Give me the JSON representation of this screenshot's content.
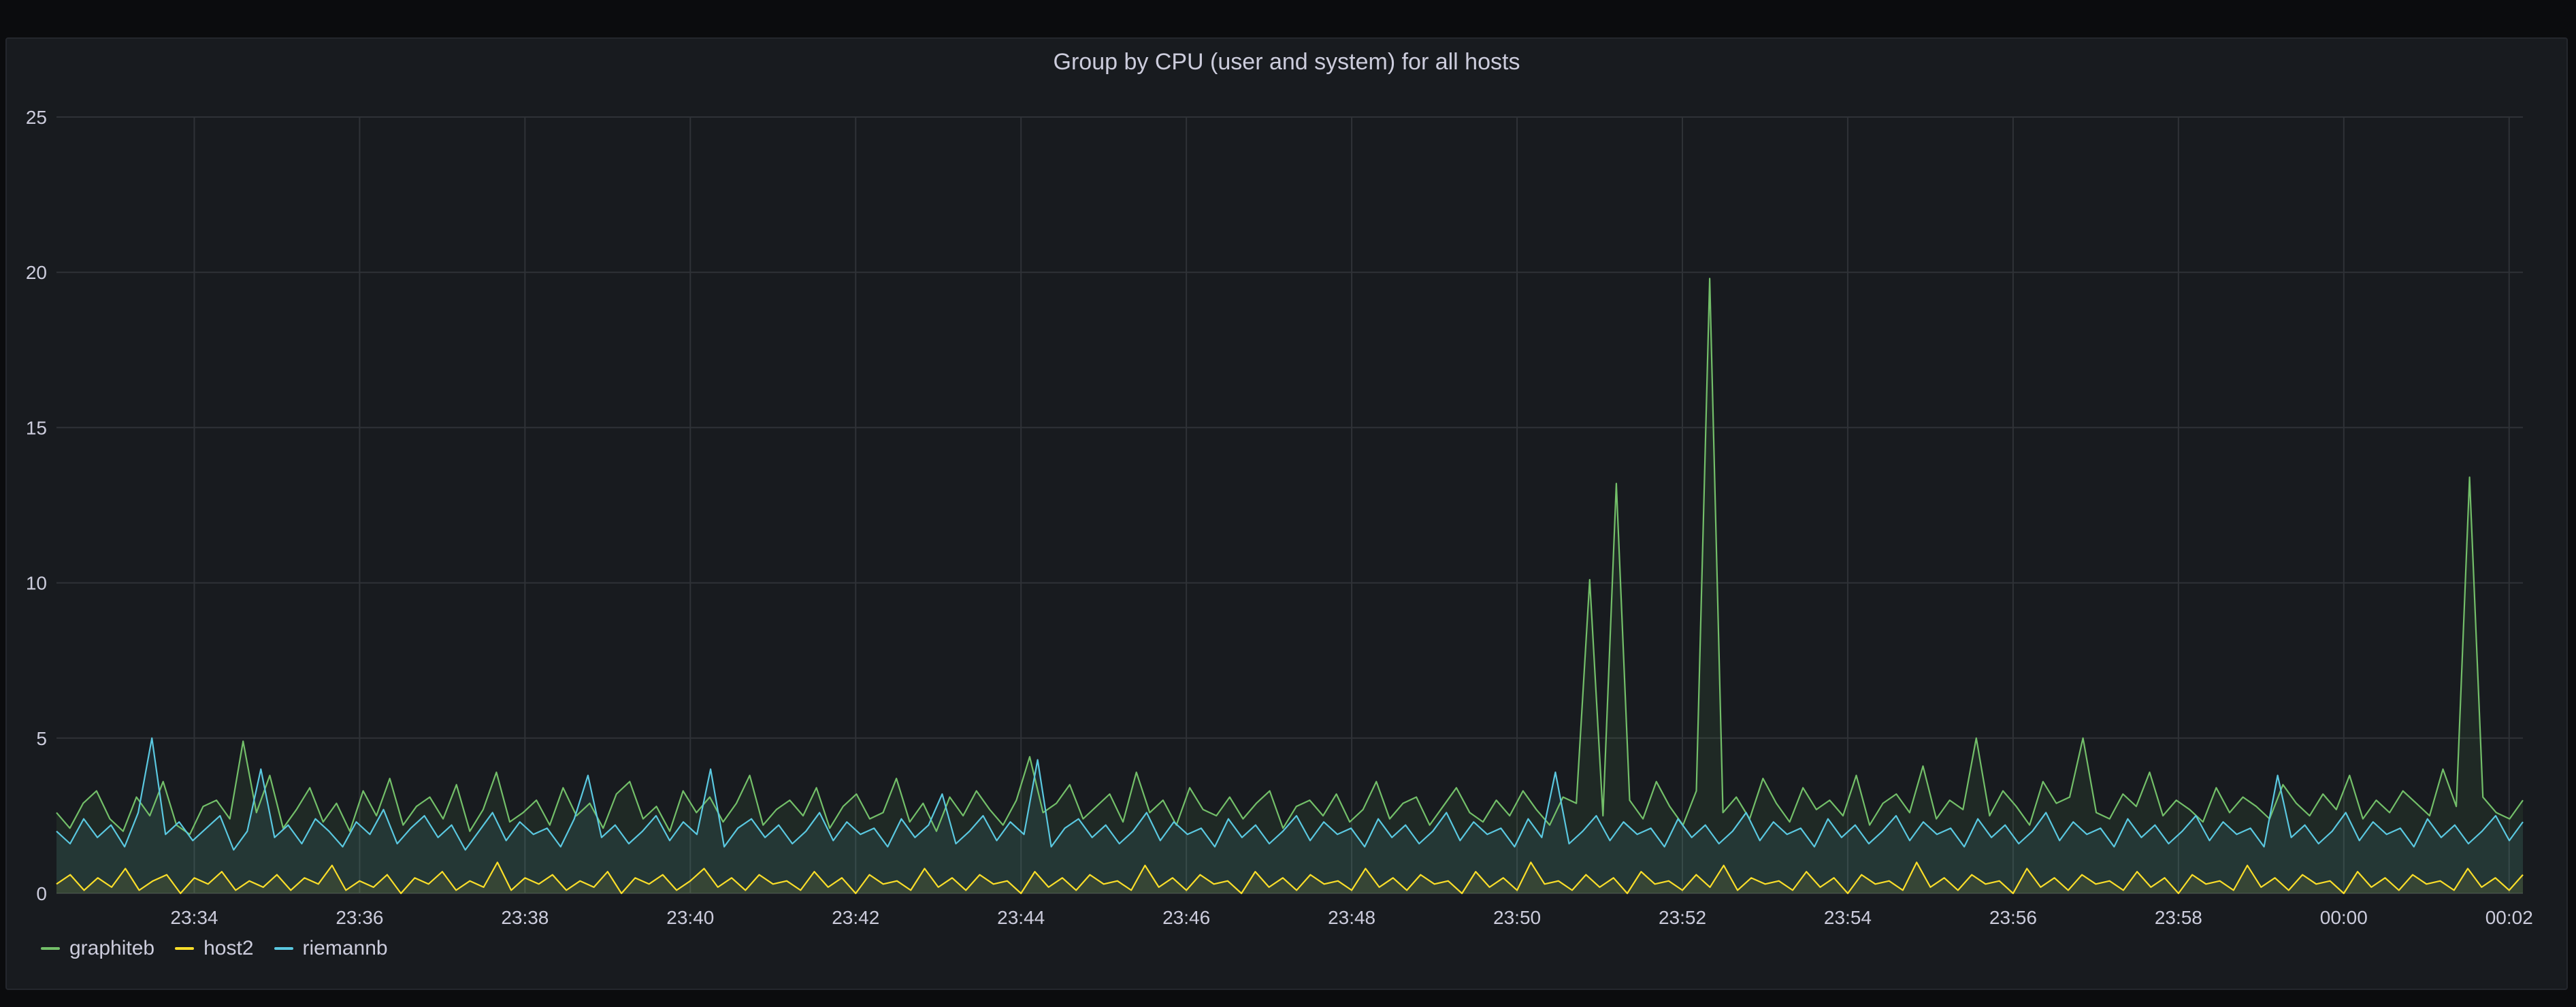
{
  "panel": {
    "title": "Group by CPU (user and system) for all hosts"
  },
  "chart_data": {
    "type": "line",
    "title": "Group by CPU (user and system) for all hosts",
    "xlabel": "",
    "ylabel": "",
    "ylim": [
      0,
      25
    ],
    "yticks": [
      0,
      5,
      10,
      15,
      20,
      25
    ],
    "xrange": [
      "23:32:20",
      "00:02:10"
    ],
    "xticks": [
      "23:34",
      "23:36",
      "23:38",
      "23:40",
      "23:42",
      "23:44",
      "23:46",
      "23:48",
      "23:50",
      "23:52",
      "23:54",
      "23:56",
      "23:58",
      "00:00",
      "00:02"
    ],
    "grid": true,
    "legend": "bottom-left",
    "series": [
      {
        "name": "graphiteb",
        "color": "#73bf69",
        "sample_seconds": 10,
        "values": [
          2.6,
          2.1,
          2.9,
          3.3,
          2.4,
          2.0,
          3.1,
          2.5,
          3.6,
          2.2,
          1.9,
          2.8,
          3.0,
          2.4,
          4.9,
          2.6,
          3.8,
          2.1,
          2.7,
          3.4,
          2.3,
          2.9,
          2.0,
          3.3,
          2.5,
          3.7,
          2.2,
          2.8,
          3.1,
          2.4,
          3.5,
          2.0,
          2.7,
          3.9,
          2.3,
          2.6,
          3.0,
          2.2,
          3.4,
          2.5,
          2.9,
          2.1,
          3.2,
          3.6,
          2.4,
          2.8,
          2.0,
          3.3,
          2.6,
          3.1,
          2.3,
          2.9,
          3.8,
          2.2,
          2.7,
          3.0,
          2.5,
          3.4,
          2.1,
          2.8,
          3.2,
          2.4,
          2.6,
          3.7,
          2.3,
          2.9,
          2.0,
          3.1,
          2.5,
          3.3,
          2.7,
          2.2,
          3.0,
          4.4,
          2.6,
          2.9,
          3.5,
          2.4,
          2.8,
          3.2,
          2.3,
          3.9,
          2.6,
          3.0,
          2.2,
          3.4,
          2.7,
          2.5,
          3.1,
          2.4,
          2.9,
          3.3,
          2.1,
          2.8,
          3.0,
          2.5,
          3.2,
          2.3,
          2.7,
          3.6,
          2.4,
          2.9,
          3.1,
          2.2,
          2.8,
          3.4,
          2.6,
          2.3,
          3.0,
          2.5,
          3.3,
          2.7,
          2.2,
          3.1,
          2.9,
          10.1,
          2.5,
          13.2,
          3.0,
          2.4,
          3.6,
          2.8,
          2.2,
          3.3,
          19.8,
          2.6,
          3.1,
          2.4,
          3.7,
          2.9,
          2.3,
          3.4,
          2.7,
          3.0,
          2.5,
          3.8,
          2.2,
          2.9,
          3.2,
          2.6,
          4.1,
          2.4,
          3.0,
          2.7,
          5.0,
          2.5,
          3.3,
          2.8,
          2.2,
          3.6,
          2.9,
          3.1,
          5.0,
          2.6,
          2.4,
          3.2,
          2.8,
          3.9,
          2.5,
          3.0,
          2.7,
          2.3,
          3.4,
          2.6,
          3.1,
          2.8,
          2.4,
          3.5,
          2.9,
          2.5,
          3.2,
          2.7,
          3.8,
          2.4,
          3.0,
          2.6,
          3.3,
          2.9,
          2.5,
          4.0,
          2.8,
          13.4,
          3.1,
          2.6,
          2.4,
          3.0
        ]
      },
      {
        "name": "host2",
        "color": "#fade2a",
        "sample_seconds": 10,
        "values": [
          0.3,
          0.6,
          0.1,
          0.5,
          0.2,
          0.8,
          0.1,
          0.4,
          0.6,
          0.0,
          0.5,
          0.3,
          0.7,
          0.1,
          0.4,
          0.2,
          0.6,
          0.1,
          0.5,
          0.3,
          0.9,
          0.1,
          0.4,
          0.2,
          0.6,
          0.0,
          0.5,
          0.3,
          0.7,
          0.1,
          0.4,
          0.2,
          1.0,
          0.1,
          0.5,
          0.3,
          0.6,
          0.1,
          0.4,
          0.2,
          0.7,
          0.0,
          0.5,
          0.3,
          0.6,
          0.1,
          0.4,
          0.8,
          0.2,
          0.5,
          0.1,
          0.6,
          0.3,
          0.4,
          0.1,
          0.7,
          0.2,
          0.5,
          0.0,
          0.6,
          0.3,
          0.4,
          0.1,
          0.8,
          0.2,
          0.5,
          0.1,
          0.6,
          0.3,
          0.4,
          0.0,
          0.7,
          0.2,
          0.5,
          0.1,
          0.6,
          0.3,
          0.4,
          0.1,
          0.9,
          0.2,
          0.5,
          0.1,
          0.6,
          0.3,
          0.4,
          0.0,
          0.7,
          0.2,
          0.5,
          0.1,
          0.6,
          0.3,
          0.4,
          0.1,
          0.8,
          0.2,
          0.5,
          0.1,
          0.6,
          0.3,
          0.4,
          0.0,
          0.7,
          0.2,
          0.5,
          0.1,
          1.0,
          0.3,
          0.4,
          0.1,
          0.6,
          0.2,
          0.5,
          0.0,
          0.7,
          0.3,
          0.4,
          0.1,
          0.6,
          0.2,
          0.9,
          0.1,
          0.5,
          0.3,
          0.4,
          0.1,
          0.7,
          0.2,
          0.5,
          0.0,
          0.6,
          0.3,
          0.4,
          0.1,
          1.0,
          0.2,
          0.5,
          0.1,
          0.6,
          0.3,
          0.4,
          0.0,
          0.8,
          0.2,
          0.5,
          0.1,
          0.6,
          0.3,
          0.4,
          0.1,
          0.7,
          0.2,
          0.5,
          0.0,
          0.6,
          0.3,
          0.4,
          0.1,
          0.9,
          0.2,
          0.5,
          0.1,
          0.6,
          0.3,
          0.4,
          0.0,
          0.7,
          0.2,
          0.5,
          0.1,
          0.6,
          0.3,
          0.4,
          0.1,
          0.8,
          0.2,
          0.5,
          0.1,
          0.6
        ]
      },
      {
        "name": "riemannb",
        "color": "#5ac8e0",
        "sample_seconds": 10,
        "values": [
          2.0,
          1.6,
          2.4,
          1.8,
          2.2,
          1.5,
          2.6,
          5.0,
          1.9,
          2.3,
          1.7,
          2.1,
          2.5,
          1.4,
          2.0,
          4.0,
          1.8,
          2.2,
          1.6,
          2.4,
          2.0,
          1.5,
          2.3,
          1.9,
          2.7,
          1.6,
          2.1,
          2.5,
          1.8,
          2.2,
          1.4,
          2.0,
          2.6,
          1.7,
          2.3,
          1.9,
          2.1,
          1.5,
          2.4,
          3.8,
          1.8,
          2.2,
          1.6,
          2.0,
          2.5,
          1.7,
          2.3,
          1.9,
          4.0,
          1.5,
          2.1,
          2.4,
          1.8,
          2.2,
          1.6,
          2.0,
          2.6,
          1.7,
          2.3,
          1.9,
          2.1,
          1.5,
          2.4,
          1.8,
          2.2,
          3.2,
          1.6,
          2.0,
          2.5,
          1.7,
          2.3,
          1.9,
          4.3,
          1.5,
          2.1,
          2.4,
          1.8,
          2.2,
          1.6,
          2.0,
          2.6,
          1.7,
          2.3,
          1.9,
          2.1,
          1.5,
          2.4,
          1.8,
          2.2,
          1.6,
          2.0,
          2.5,
          1.7,
          2.3,
          1.9,
          2.1,
          1.5,
          2.4,
          1.8,
          2.2,
          1.6,
          2.0,
          2.6,
          1.7,
          2.3,
          1.9,
          2.1,
          1.5,
          2.4,
          1.8,
          3.9,
          1.6,
          2.0,
          2.5,
          1.7,
          2.3,
          1.9,
          2.1,
          1.5,
          2.4,
          1.8,
          2.2,
          1.6,
          2.0,
          2.6,
          1.7,
          2.3,
          1.9,
          2.1,
          1.5,
          2.4,
          1.8,
          2.2,
          1.6,
          2.0,
          2.5,
          1.7,
          2.3,
          1.9,
          2.1,
          1.5,
          2.4,
          1.8,
          2.2,
          1.6,
          2.0,
          2.6,
          1.7,
          2.3,
          1.9,
          2.1,
          1.5,
          2.4,
          1.8,
          2.2,
          1.6,
          2.0,
          2.5,
          1.7,
          2.3,
          1.9,
          2.1,
          1.5,
          3.8,
          1.8,
          2.2,
          1.6,
          2.0,
          2.6,
          1.7,
          2.3,
          1.9,
          2.1,
          1.5,
          2.4,
          1.8,
          2.2,
          1.6,
          2.0,
          2.5,
          1.7,
          2.3
        ]
      }
    ]
  }
}
